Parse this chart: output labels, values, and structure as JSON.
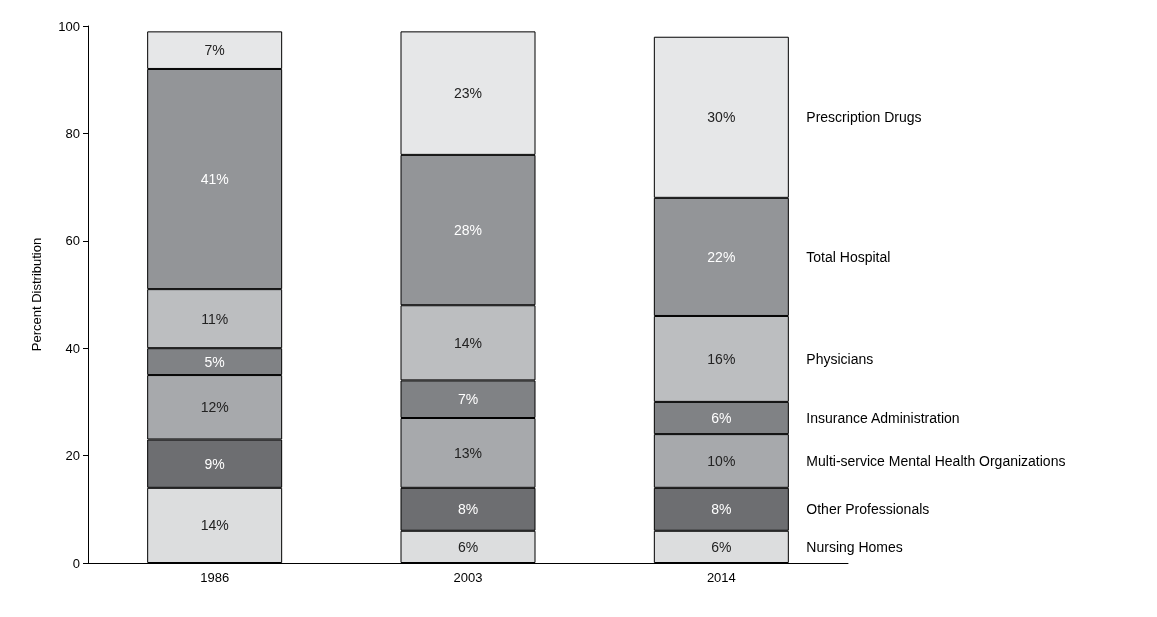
{
  "chart_data": {
    "type": "bar",
    "stacked": true,
    "ylabel": "Percent Distribution",
    "categories": [
      "1986",
      "2003",
      "2014"
    ],
    "ylim": [
      0,
      100
    ],
    "yticks": [
      0,
      20,
      40,
      60,
      80,
      100
    ],
    "grid": false,
    "legend": false,
    "series": [
      {
        "name": "Nursing Homes",
        "color": "#dcddde",
        "values": [
          14,
          6,
          6
        ],
        "value_labels": [
          "14%",
          "6%",
          "6%"
        ]
      },
      {
        "name": "Other Professionals",
        "color": "#6d6e71",
        "values": [
          9,
          8,
          8
        ],
        "value_labels": [
          "9%",
          "8%",
          "8%"
        ]
      },
      {
        "name": "Multi-service Mental Health Organizations",
        "color": "#a7a9ac",
        "values": [
          12,
          13,
          10
        ],
        "value_labels": [
          "12%",
          "13%",
          "10%"
        ]
      },
      {
        "name": "Insurance Administration",
        "color": "#808285",
        "values": [
          5,
          7,
          6
        ],
        "value_labels": [
          "5%",
          "7%",
          "6%"
        ]
      },
      {
        "name": "Physicians",
        "color": "#bcbec0",
        "values": [
          11,
          14,
          16
        ],
        "value_labels": [
          "11%",
          "14%",
          "16%"
        ]
      },
      {
        "name": "Total Hospital",
        "color": "#939598",
        "values": [
          41,
          28,
          22
        ],
        "value_labels": [
          "41%",
          "28%",
          "22%"
        ]
      },
      {
        "name": "Prescription Drugs",
        "color": "#e6e7e8",
        "values": [
          7,
          23,
          30
        ],
        "value_labels": [
          "7%",
          "23%",
          "30%"
        ]
      }
    ]
  }
}
